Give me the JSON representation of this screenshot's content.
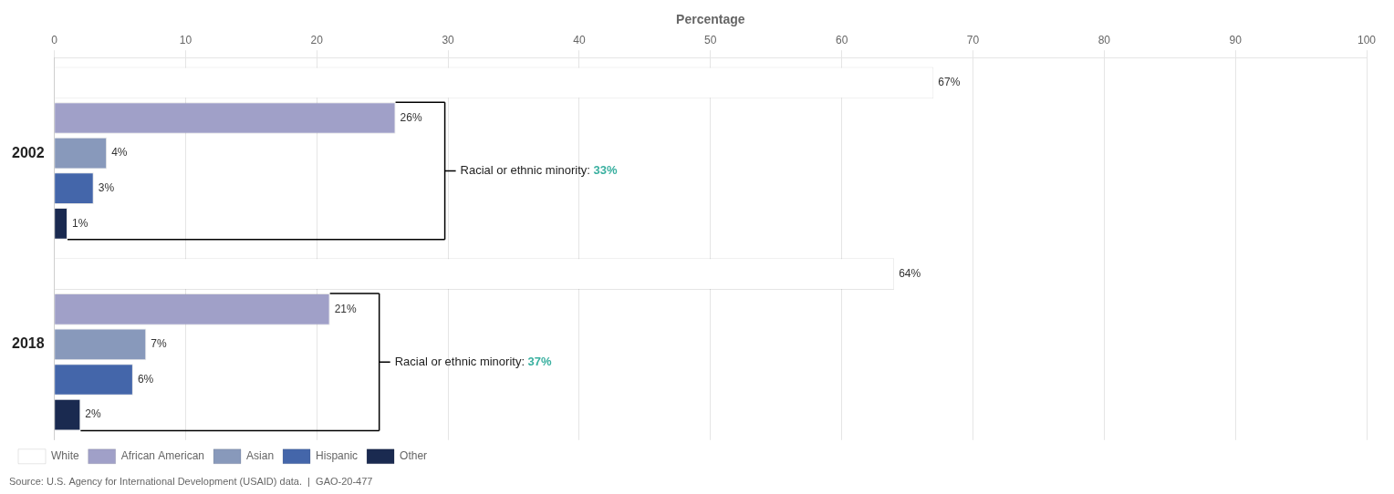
{
  "chart_data": {
    "type": "bar",
    "orientation": "horizontal",
    "xlabel": "Percentage",
    "categories": [
      "2002",
      "2018"
    ],
    "series": [
      {
        "name": "White",
        "color": "#ffffff",
        "values": [
          67,
          64
        ],
        "value_labels": [
          "67%",
          "64%"
        ]
      },
      {
        "name": "African American",
        "color": "#a0a0c8",
        "values": [
          26,
          21
        ],
        "value_labels": [
          "26%",
          "21%"
        ]
      },
      {
        "name": "Asian",
        "color": "#8899bb",
        "values": [
          4,
          7
        ],
        "value_labels": [
          "4%",
          "7%"
        ]
      },
      {
        "name": "Hispanic",
        "color": "#4466aa",
        "values": [
          3,
          6
        ],
        "value_labels": [
          "3%",
          "6%"
        ]
      },
      {
        "name": "Other",
        "color": "#1a2a50",
        "values": [
          1,
          2
        ],
        "value_labels": [
          "1%",
          "2%"
        ]
      }
    ],
    "annotations": [
      {
        "category": "2002",
        "text": "Racial or ethnic minority: ",
        "highlight": "33%",
        "color": "#3ab0a0"
      },
      {
        "category": "2018",
        "text": "Racial or ethnic minority: ",
        "highlight": "37%",
        "color": "#3ab0a0"
      }
    ],
    "source": "Source: U.S. Agency for International Development (USAID) data.  |  GAO-20-477",
    "xlim": [
      0,
      100
    ],
    "xticks": [
      0,
      10,
      20,
      30,
      40,
      50,
      60,
      70,
      80,
      90,
      100
    ],
    "grid": true,
    "legend": "bottom",
    "data_labels": true
  }
}
